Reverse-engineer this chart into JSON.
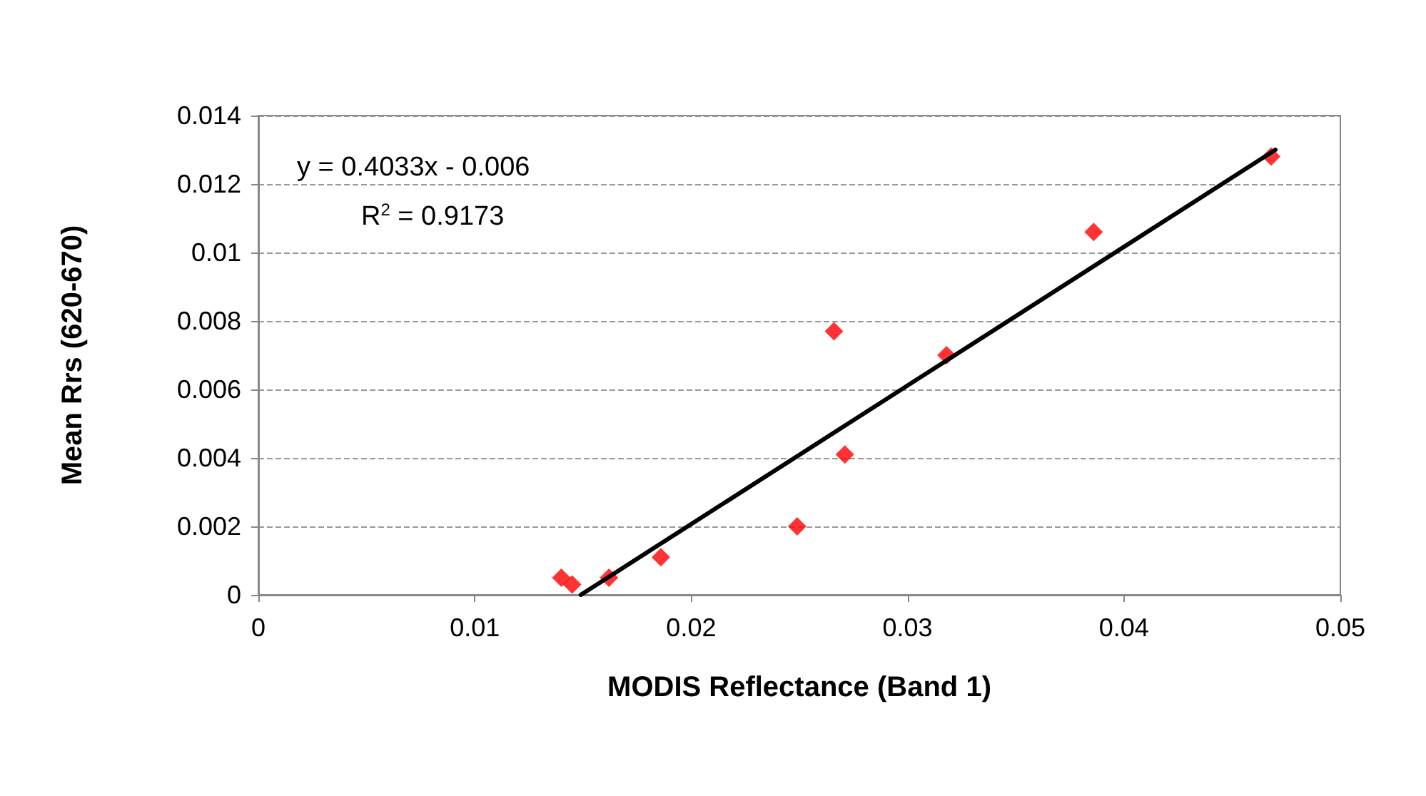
{
  "chart_data": {
    "type": "scatter",
    "xlabel": "MODIS Reflectance (Band 1)",
    "ylabel": "Mean Rrs (620-670)",
    "xlim": [
      0,
      0.05
    ],
    "xticks": [
      0,
      0.01,
      0.02,
      0.03,
      0.04,
      0.05
    ],
    "ylim": [
      0,
      0.014
    ],
    "yticks": [
      0,
      0.002,
      0.004,
      0.006,
      0.008,
      0.01,
      0.012,
      0.014
    ],
    "grid": "y",
    "marker": "diamond",
    "annotations": [
      "y = 0.4033x - 0.006",
      "R$^{2}$ = 0.9173"
    ],
    "series": [
      {
        "color": "#ff0000",
        "x": [
          0.014,
          0.0145,
          0.0162,
          0.0186,
          0.0249,
          0.0266,
          0.0271,
          0.0318,
          0.0386,
          0.0468
        ],
        "values": [
          0.0005,
          0.0003,
          0.0005,
          0.0011,
          0.002,
          0.0077,
          0.0041,
          0.007,
          0.0106,
          0.0128
        ]
      },
      {
        "type": "line",
        "color": "#000000",
        "x": [
          0.0149,
          0.047
        ],
        "values": [
          0,
          0.013
        ],
        "marker": "none",
        "line_style": "solid"
      }
    ]
  }
}
